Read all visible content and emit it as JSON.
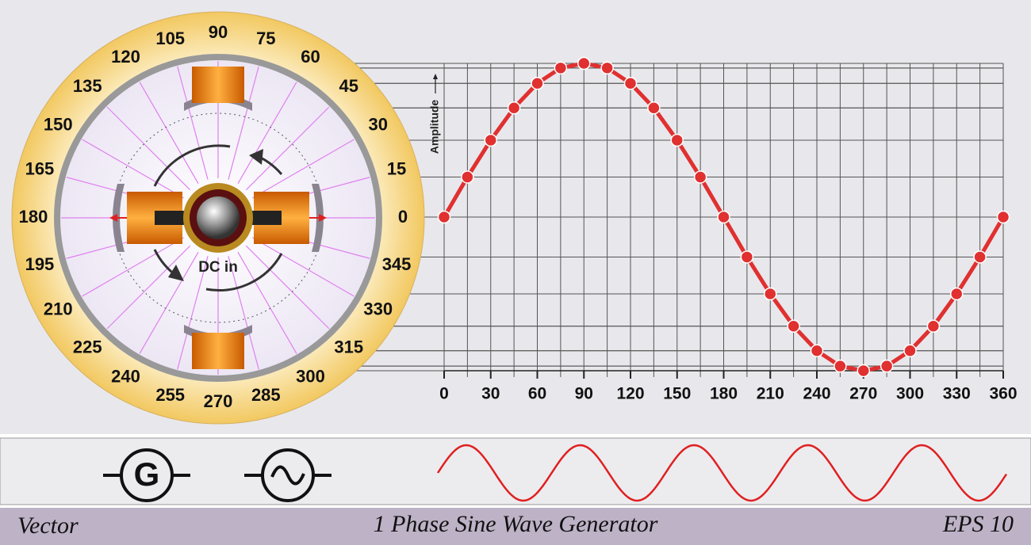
{
  "dial": {
    "labels": [
      0,
      15,
      30,
      45,
      60,
      75,
      90,
      105,
      120,
      135,
      150,
      165,
      180,
      195,
      210,
      225,
      240,
      255,
      270,
      285,
      300,
      315,
      330,
      345
    ],
    "rotor_label": "DC in"
  },
  "graph": {
    "type": "line",
    "y_label": "Amplitude",
    "x": [
      0,
      15,
      30,
      45,
      60,
      75,
      90,
      105,
      120,
      135,
      150,
      165,
      180,
      195,
      210,
      225,
      240,
      255,
      270,
      285,
      300,
      315,
      330,
      345,
      360
    ],
    "values": [
      0,
      0.26,
      0.5,
      0.71,
      0.87,
      0.97,
      1,
      0.97,
      0.87,
      0.71,
      0.5,
      0.26,
      0,
      -0.26,
      -0.5,
      -0.71,
      -0.87,
      -0.97,
      -1,
      -0.97,
      -0.87,
      -0.71,
      -0.5,
      -0.26,
      0
    ],
    "xlim": [
      0,
      360
    ],
    "ylim": [
      -1,
      1
    ],
    "xticks": [
      0,
      30,
      60,
      90,
      120,
      150,
      180,
      210,
      240,
      270,
      300,
      330,
      360
    ],
    "color": "#e03030"
  },
  "symbols": {
    "generator": "G"
  },
  "footer": {
    "left": "Vector",
    "center": "1 Phase Sine Wave Generator",
    "right": "EPS 10"
  }
}
